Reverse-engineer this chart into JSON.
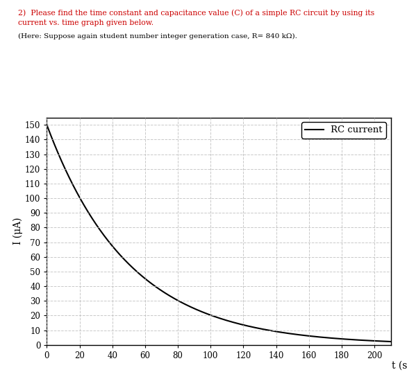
{
  "title_line1": "2)  Please find the time constant and capacitance value (C) of a simple RC circuit by using its",
  "title_line2": "current vs. time graph given below.",
  "subtitle": "(Here: Suppose again student number integer generation case, R= 840 kΩ).",
  "xlabel": "t (s)",
  "ylabel": "I (μA)",
  "xlim": [
    0,
    210
  ],
  "ylim": [
    0,
    155
  ],
  "xticks": [
    0,
    20,
    40,
    60,
    80,
    100,
    120,
    140,
    160,
    180,
    200
  ],
  "yticks": [
    0,
    10,
    20,
    30,
    40,
    50,
    60,
    70,
    80,
    90,
    100,
    110,
    120,
    130,
    140,
    150
  ],
  "I0": 150,
  "tau": 50,
  "line_color": "#000000",
  "line_width": 1.5,
  "legend_label": "RC current",
  "grid_color": "#bbbbbb",
  "grid_style": "--",
  "grid_alpha": 0.8,
  "bg_color": "#ffffff",
  "text_color_red": "#cc0000",
  "text_color_black": "#000000",
  "fig_bg": "#ffffff",
  "title1_fontsize": 7.8,
  "title2_fontsize": 7.8,
  "subtitle_fontsize": 7.5,
  "tick_fontsize": 8.5,
  "label_fontsize": 10,
  "legend_fontsize": 9.5
}
